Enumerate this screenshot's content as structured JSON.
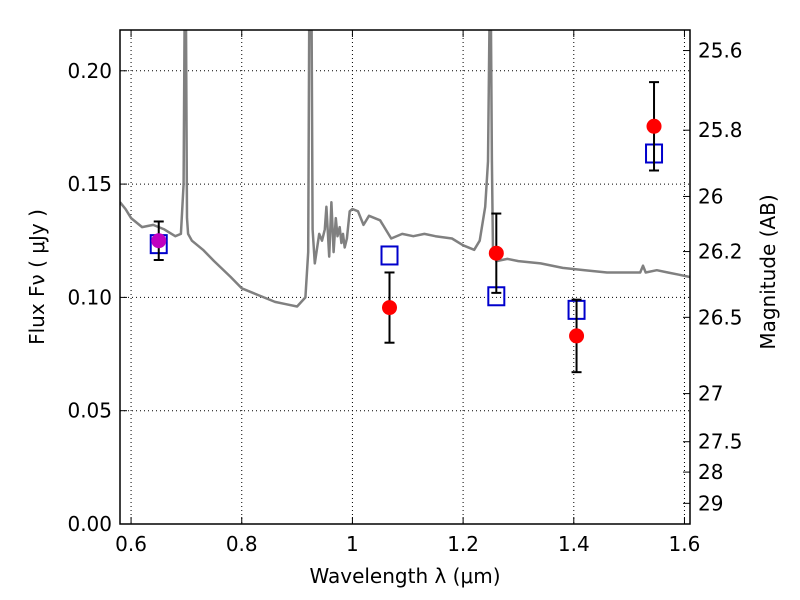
{
  "chart_data": {
    "type": "scatter",
    "xlabel": "Wavelength  λ (μm)",
    "ylabel": "Flux  Fν  ( μJy )",
    "ylabel_right": "Magnitude (AB)",
    "xlim": [
      0.58,
      1.61
    ],
    "ylim": [
      0.0,
      0.218
    ],
    "x_ticks": [
      0.6,
      0.8,
      1.0,
      1.2,
      1.4,
      1.6
    ],
    "x_tick_labels": [
      "0.6",
      "0.8",
      "1",
      "1.2",
      "1.4",
      "1.6"
    ],
    "y_ticks": [
      0.0,
      0.05,
      0.1,
      0.15,
      0.2
    ],
    "y_tick_labels": [
      "0.00",
      "0.05",
      "0.10",
      "0.15",
      "0.20"
    ],
    "mag_ticks": [
      25.6,
      25.8,
      26,
      26.2,
      26.5,
      27,
      27.5,
      28,
      29
    ],
    "mag_tick_labels": [
      "25.6",
      "25.8",
      "26",
      "26.2",
      "26.5",
      "27",
      "27.5",
      "28",
      "29"
    ],
    "grid": true,
    "colors": {
      "observed": "#ff0000",
      "observed_first": "#c000c0",
      "model_box": "#0000cc",
      "spectrum": "#808080",
      "errorbar": "#000000"
    },
    "series": [
      {
        "type": "errorbar",
        "points": [
          {
            "x": 0.65,
            "y": 0.125,
            "yerr": 0.0085
          },
          {
            "x": 1.067,
            "y": 0.0955,
            "yerr": 0.0155
          },
          {
            "x": 1.26,
            "y": 0.1195,
            "yerr": 0.0175
          },
          {
            "x": 1.405,
            "y": 0.083,
            "yerr": 0.016
          },
          {
            "x": 1.545,
            "y": 0.1755,
            "yerr": 0.0195
          }
        ]
      },
      {
        "type": "model-box",
        "points": [
          {
            "x": 0.65,
            "y": 0.1235
          },
          {
            "x": 1.067,
            "y": 0.1185
          },
          {
            "x": 1.26,
            "y": 0.1005
          },
          {
            "x": 1.405,
            "y": 0.0945
          },
          {
            "x": 1.545,
            "y": 0.1635
          }
        ]
      },
      {
        "type": "line",
        "x": [
          0.58,
          0.59,
          0.6,
          0.62,
          0.64,
          0.66,
          0.68,
          0.69,
          0.695,
          0.697,
          0.699,
          0.701,
          0.703,
          0.71,
          0.73,
          0.75,
          0.78,
          0.8,
          0.83,
          0.86,
          0.88,
          0.9,
          0.915,
          0.92,
          0.922,
          0.924,
          0.926,
          0.928,
          0.932,
          0.94,
          0.945,
          0.95,
          0.953,
          0.958,
          0.962,
          0.966,
          0.97,
          0.973,
          0.977,
          0.98,
          0.983,
          0.986,
          0.99,
          0.995,
          1.0,
          1.01,
          1.02,
          1.03,
          1.05,
          1.07,
          1.09,
          1.11,
          1.13,
          1.15,
          1.18,
          1.2,
          1.22,
          1.23,
          1.24,
          1.245,
          1.248,
          1.25,
          1.252,
          1.254,
          1.26,
          1.28,
          1.3,
          1.34,
          1.38,
          1.42,
          1.46,
          1.5,
          1.52,
          1.525,
          1.53,
          1.55,
          1.57,
          1.59,
          1.61
        ],
        "y": [
          0.142,
          0.139,
          0.135,
          0.131,
          0.132,
          0.13,
          0.127,
          0.128,
          0.15,
          0.23,
          0.23,
          0.135,
          0.128,
          0.125,
          0.121,
          0.116,
          0.109,
          0.104,
          0.101,
          0.098,
          0.097,
          0.096,
          0.1,
          0.12,
          0.23,
          0.23,
          0.23,
          0.13,
          0.115,
          0.128,
          0.125,
          0.13,
          0.14,
          0.118,
          0.142,
          0.12,
          0.135,
          0.127,
          0.131,
          0.124,
          0.128,
          0.122,
          0.126,
          0.138,
          0.139,
          0.138,
          0.132,
          0.136,
          0.134,
          0.126,
          0.128,
          0.127,
          0.128,
          0.127,
          0.126,
          0.123,
          0.121,
          0.125,
          0.14,
          0.16,
          0.23,
          0.23,
          0.16,
          0.12,
          0.116,
          0.117,
          0.116,
          0.115,
          0.113,
          0.112,
          0.111,
          0.111,
          0.111,
          0.114,
          0.111,
          0.112,
          0.111,
          0.11,
          0.109
        ]
      }
    ]
  }
}
